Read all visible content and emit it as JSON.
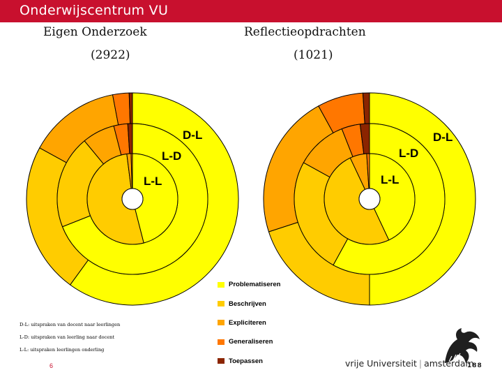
{
  "header": {
    "title": "Onderwijscentrum VU"
  },
  "chart_data": [
    {
      "type": "donut",
      "title": "Eigen Onderzoek",
      "subtitle": "(2922)",
      "direction": "clockwise",
      "categories": [
        "Problematiseren",
        "Beschrijven",
        "Expliciteren",
        "Generaliseren",
        "Toepassen"
      ],
      "rings": [
        {
          "name": "D-L",
          "values": [
            60.0,
            23.0,
            14.0,
            2.5,
            0.5
          ]
        },
        {
          "name": "L-D",
          "values": [
            69.0,
            20.0,
            7.0,
            3.0,
            1.0
          ]
        },
        {
          "name": "L-L",
          "values": [
            46.0,
            52.0,
            1.5,
            0.5,
            0.0
          ]
        }
      ]
    },
    {
      "type": "donut",
      "title": "Reflectieopdrachten",
      "subtitle": "(1021)",
      "direction": "clockwise",
      "categories": [
        "Problematiseren",
        "Beschrijven",
        "Expliciteren",
        "Generaliseren",
        "Toepassen"
      ],
      "rings": [
        {
          "name": "D-L",
          "values": [
            50.0,
            20.0,
            22.0,
            7.0,
            1.0
          ]
        },
        {
          "name": "L-D",
          "values": [
            58.0,
            25.0,
            11.0,
            4.0,
            2.0
          ]
        },
        {
          "name": "L-L",
          "values": [
            43.0,
            50.0,
            6.0,
            1.0,
            0.0
          ]
        }
      ]
    }
  ],
  "legend": {
    "items": [
      {
        "label": "Problematiseren",
        "color": "#ffff00"
      },
      {
        "label": "Beschrijven",
        "color": "#ffcc00"
      },
      {
        "label": "Expliciteren",
        "color": "#ffa500"
      },
      {
        "label": "Generaliseren",
        "color": "#ff7700"
      },
      {
        "label": "Toepassen",
        "color": "#8b2500"
      }
    ]
  },
  "notes": [
    "D-L: uitspraken van docent naar leerlingen",
    "L-D: uitspraken van leerling naar docent",
    "L-L: uitspraken leerlingen onderling"
  ],
  "page_number": "6",
  "footer": {
    "university": "vrije Universiteit",
    "city": "amsterdam"
  }
}
